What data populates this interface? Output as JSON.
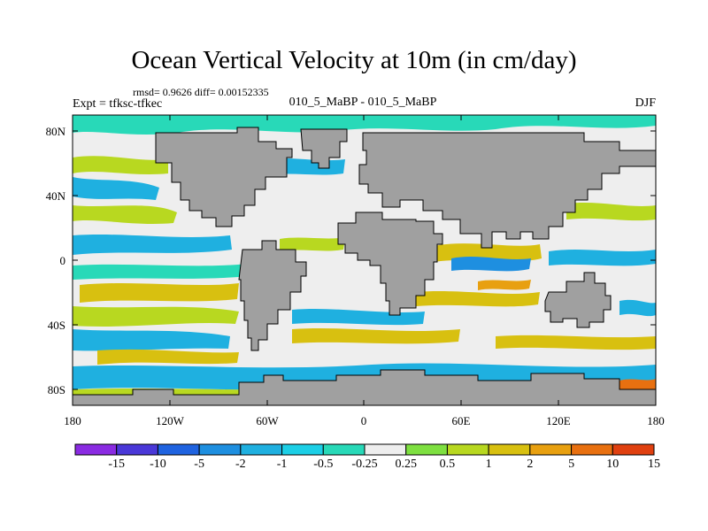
{
  "figure": {
    "title": "Ocean Vertical Velocity at 10m (in cm/day)",
    "stats": "rmsd= 0.9626 diff= 0.00152335",
    "left_label": "Expt = tfksc-tfkec",
    "center_label": "010_5_MaBP - 010_5_MaBP",
    "right_label": "DJF"
  },
  "axes": {
    "y_ticks": [
      "80N",
      "40N",
      "0",
      "40S",
      "80S"
    ],
    "x_ticks": [
      "180",
      "120W",
      "60W",
      "0",
      "60E",
      "120E",
      "180"
    ]
  },
  "colorbar": {
    "labels": [
      "-15",
      "-10",
      "-5",
      "-2",
      "-1",
      "-0.5",
      "-0.25",
      "0.25",
      "0.5",
      "1",
      "2",
      "5",
      "10",
      "15"
    ],
    "colors": [
      "#8a2be2",
      "#4a38d8",
      "#1f63e0",
      "#1e8fe0",
      "#1fb0e0",
      "#1ccfe6",
      "#28d9b8",
      "#eeeeee",
      "#7ee040",
      "#b8d820",
      "#d8c010",
      "#e8a010",
      "#e87010",
      "#e04010"
    ]
  },
  "palette": {
    "land": "#a0a0a0",
    "neutral": "#eeeeee"
  }
}
